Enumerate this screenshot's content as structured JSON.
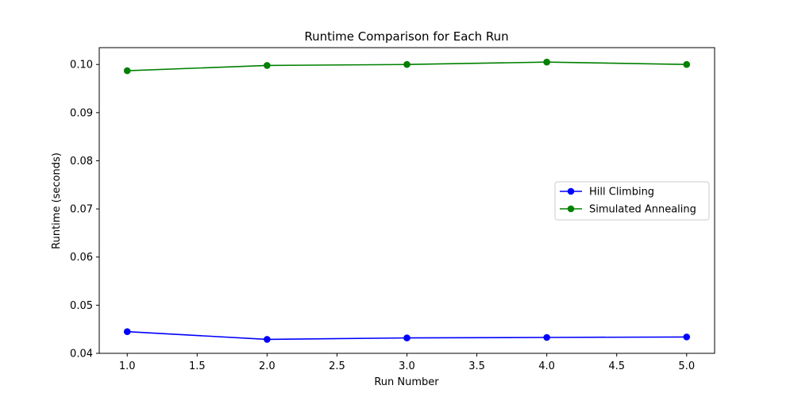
{
  "chart_data": {
    "type": "line",
    "title": "Runtime Comparison for Each Run",
    "xlabel": "Run Number",
    "ylabel": "Runtime (seconds)",
    "x": [
      1,
      2,
      3,
      4,
      5
    ],
    "xlim": [
      0.8,
      5.2
    ],
    "ylim": [
      0.04,
      0.1035
    ],
    "xticks": [
      1.0,
      1.5,
      2.0,
      2.5,
      3.0,
      3.5,
      4.0,
      4.5,
      5.0
    ],
    "xtick_labels": [
      "1.0",
      "1.5",
      "2.0",
      "2.5",
      "3.0",
      "3.5",
      "4.0",
      "4.5",
      "5.0"
    ],
    "yticks": [
      0.04,
      0.05,
      0.06,
      0.07,
      0.08,
      0.09,
      0.1
    ],
    "ytick_labels": [
      "0.04",
      "0.05",
      "0.06",
      "0.07",
      "0.08",
      "0.09",
      "0.10"
    ],
    "grid": false,
    "legend": "center-right",
    "series": [
      {
        "name": "Hill Climbing",
        "color": "#0000ff",
        "values": [
          0.0445,
          0.0429,
          0.0432,
          0.0433,
          0.0434
        ]
      },
      {
        "name": "Simulated Annealing",
        "color": "#008000",
        "values": [
          0.0987,
          0.0998,
          0.1,
          0.1005,
          0.1
        ]
      }
    ]
  }
}
